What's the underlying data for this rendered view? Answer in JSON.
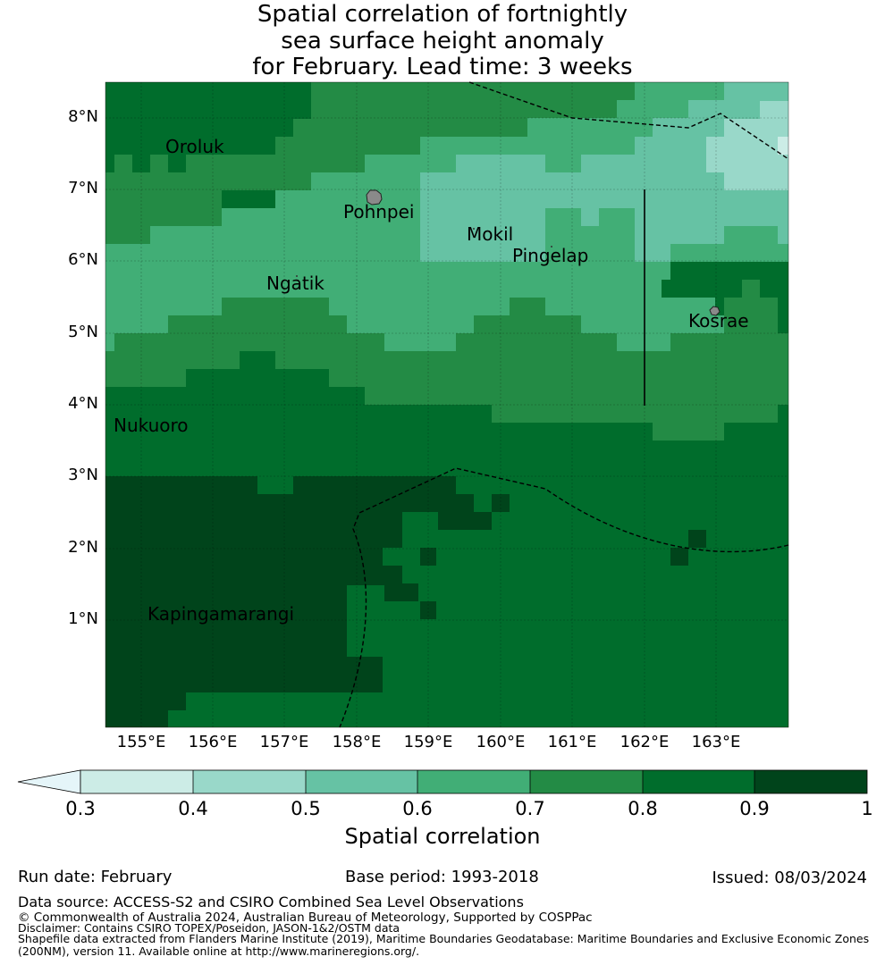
{
  "title": {
    "line1": "Spatial correlation of fortnightly",
    "line2": "sea surface height anomaly",
    "line3": "for February. Lead time: 3 weeks"
  },
  "axes": {
    "lat_labels": [
      "8°N",
      "7°N",
      "6°N",
      "5°N",
      "4°N",
      "3°N",
      "2°N",
      "1°N"
    ],
    "lon_labels": [
      "155°E",
      "156°E",
      "157°E",
      "158°E",
      "159°E",
      "160°E",
      "161°E",
      "162°E",
      "163°E"
    ]
  },
  "places": {
    "oroluk": "Oroluk",
    "pohnpei": "Pohnpei",
    "mokil": "Mokil",
    "pingelap": "Pingelap",
    "ngatik": "Ngatik",
    "kosrae": "Kosrae",
    "nukuoro": "Nukuoro",
    "kapingamarangi": "Kapingamarangi"
  },
  "colorbar": {
    "title": "Spatial correlation",
    "ticks": [
      "0.3",
      "0.4",
      "0.5",
      "0.6",
      "0.7",
      "0.8",
      "0.9",
      "1"
    ],
    "colors": {
      "under": "#e5f5f9",
      "b1": "#ccece6",
      "b2": "#99d8c9",
      "b3": "#66c2a4",
      "b4": "#41ae76",
      "b5": "#238b45",
      "b6": "#006d2c",
      "b7": "#00441b"
    }
  },
  "footer": {
    "run_date": "Run date: February",
    "base_period": "Base period: 1993-2018",
    "issued": "Issued: 08/03/2024",
    "data_source": "Data source: ACCESS-S2 and CSIRO Combined Sea Level Observations",
    "copyright": "© Commonwealth of Australia 2024, Australian Bureau of Meteorology, Supported by COSPPac",
    "disclaimer": "Disclaimer: Contains CSIRO TOPEX/Poseidon, JASON-1&2/OSTM data",
    "shapefile1": "Shapefile data extracted from Flanders Marine Institute (2019), Maritime Boundaries Geodatabase: Maritime Boundaries and Exclusive Economic Zones",
    "shapefile2": "(200NM), version 11. Available online at http://www.marineregions.org/."
  }
}
